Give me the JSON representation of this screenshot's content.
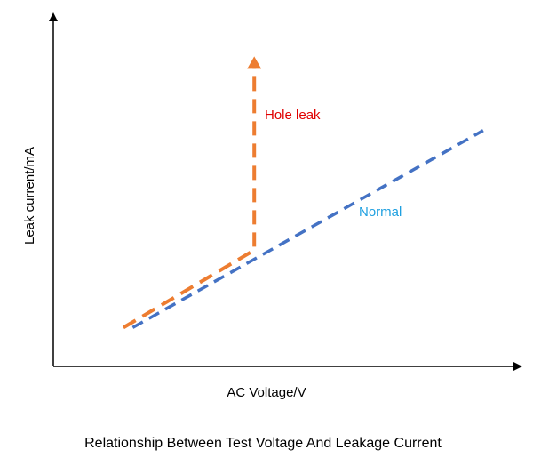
{
  "chart_data": {
    "type": "line",
    "title": "Relationship Between Test Voltage And Leakage Current",
    "xlabel": "AC Voltage/V",
    "ylabel": "Leak current/mA",
    "xlim": [
      0,
      10
    ],
    "ylim": [
      0,
      10
    ],
    "grid": false,
    "tick_labels": false,
    "series": [
      {
        "name": "Normal",
        "color": "#4472C4",
        "style": "dashed",
        "points": [
          [
            1.7,
            1.1
          ],
          [
            9.2,
            6.7
          ]
        ]
      },
      {
        "name": "Hole leak",
        "color": "#ED7D31",
        "style": "dashed",
        "arrow_end": true,
        "points": [
          [
            1.5,
            1.1
          ],
          [
            4.3,
            3.3
          ],
          [
            4.3,
            8.5
          ]
        ]
      }
    ],
    "annotations": [
      {
        "text": "Hole leak",
        "color": "#E00000",
        "series": "Hole leak"
      },
      {
        "text": "Normal",
        "color": "#1FA0E0",
        "series": "Normal"
      }
    ]
  }
}
